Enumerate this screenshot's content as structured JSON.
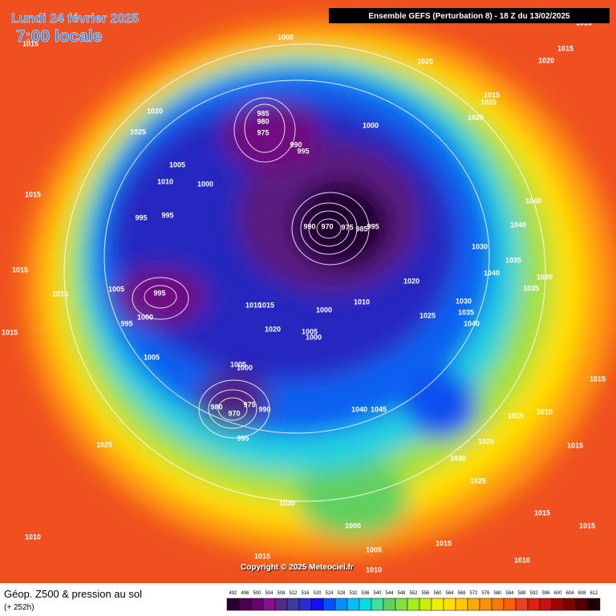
{
  "header": {
    "date": "Lundi 24 février 2025",
    "time": "7:00 locale",
    "model": "Ensemble GEFS  (Perturbation 8)  -  18 Z du 13/02/2025"
  },
  "footer": {
    "title": "Géop. Z500 & pression au sol",
    "lead_time": "(+ 252h)"
  },
  "copyright": "Copyright © 2025 Meteociel.fr",
  "colorbar": {
    "labels": [
      492,
      496,
      500,
      504,
      508,
      512,
      516,
      520,
      524,
      528,
      532,
      536,
      540,
      544,
      548,
      552,
      556,
      560,
      564,
      568,
      572,
      576,
      580,
      584,
      588,
      592,
      596,
      600,
      604,
      608,
      612
    ],
    "colors": [
      "#2a0030",
      "#4b0050",
      "#6a0070",
      "#8a1090",
      "#5a2a8a",
      "#3a3aa0",
      "#2a2ad0",
      "#1010f0",
      "#0050ff",
      "#0090ff",
      "#00c0ff",
      "#00e0e0",
      "#40e0a0",
      "#60d060",
      "#80e040",
      "#a0f020",
      "#c8f000",
      "#f0f000",
      "#ffe000",
      "#ffc800",
      "#ffa800",
      "#ff9000",
      "#ff7800",
      "#ff6000",
      "#f04020",
      "#e02010",
      "#c81010",
      "#a00000",
      "#800000",
      "#500000",
      "#200000"
    ]
  },
  "isobar_labels": [
    1000,
    1015,
    1025,
    1020,
    1015,
    1010,
    1015,
    1020,
    1020,
    1020,
    1025,
    985,
    980,
    975,
    1000,
    990,
    995,
    1005,
    1010,
    1000,
    1015,
    995,
    995,
    990,
    970,
    975,
    985,
    995,
    1040,
    1040,
    1030,
    1035,
    1040,
    1030,
    1035,
    1015,
    1005,
    995,
    1015,
    1000,
    995,
    1010,
    1015,
    1020,
    1000,
    1010,
    1030,
    1035,
    1040,
    1025,
    1020,
    1005,
    1000,
    1015,
    1005,
    1005,
    1000,
    1040,
    1045,
    980,
    970,
    975,
    990,
    995,
    1015,
    1010,
    1015,
    1025,
    1025,
    1030,
    1025,
    1015,
    1030,
    1000,
    1015,
    1015,
    1015,
    1010,
    1005,
    1015,
    1010,
    1010
  ]
}
